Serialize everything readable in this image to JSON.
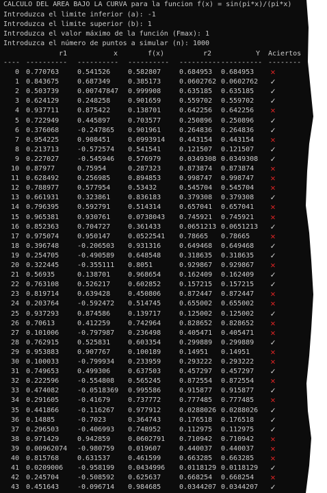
{
  "header_lines": [
    "CALCULO DEL AREA BAJO LA CURVA para la funcion f(x) = sin(pi*x)/(pi*x)",
    "Introduzca el limite inferior (a): -1",
    "Introduzca el limite superior (b): 1",
    "Introduzca el valor máximo de la función (Fmax): 1",
    "Introduzca el número de puntos a simular (n): 1000"
  ],
  "columns": {
    "r1": "r1",
    "x": "x",
    "fx": "f(x)",
    "r2": "r2",
    "y": "Y",
    "aciertos": "Aciertos"
  },
  "dashes": {
    "idx": "----",
    "r1": "----------",
    "x": "----------",
    "fx": "----------",
    "r2": "----------",
    "y": "----------",
    "aciertos": "--------"
  },
  "symbols": {
    "hit": "✓",
    "miss": "✕"
  },
  "colors": {
    "background": "#0c0c0c",
    "text": "#cccccc",
    "miss": "#e02424"
  },
  "rows": [
    [
      "0",
      "0.770763",
      "0.541526",
      "0.582807",
      "0.684953",
      "0.684953",
      "✕"
    ],
    [
      "1",
      "0.843675",
      "0.687349",
      "0.385173",
      "0.0602762",
      "0.0602762",
      "✓"
    ],
    [
      "2",
      "0.503739",
      "0.00747847",
      "0.999908",
      "0.635185",
      "0.635185",
      "✓"
    ],
    [
      "3",
      "0.624129",
      "0.248258",
      "0.901659",
      "0.559702",
      "0.559702",
      "✓"
    ],
    [
      "4",
      "0.937711",
      "0.875422",
      "0.138701",
      "0.642256",
      "0.642256",
      "✕"
    ],
    [
      "5",
      "0.722949",
      "0.445897",
      "0.703577",
      "0.250896",
      "0.250896",
      "✓"
    ],
    [
      "6",
      "0.376068",
      "-0.247865",
      "0.901961",
      "0.264836",
      "0.264836",
      "✓"
    ],
    [
      "7",
      "0.954225",
      "0.908451",
      "0.0993914",
      "0.443154",
      "0.443154",
      "✕"
    ],
    [
      "8",
      "0.213713",
      "-0.572574",
      "0.541541",
      "0.121507",
      "0.121507",
      "✓"
    ],
    [
      "9",
      "0.227027",
      "-0.545946",
      "0.576979",
      "0.0349308",
      "0.0349308",
      "✓"
    ],
    [
      "10",
      "0.87977",
      "0.75954",
      "0.287323",
      "0.873874",
      "0.873874",
      "✕"
    ],
    [
      "11",
      "0.628492",
      "0.256985",
      "0.894853",
      "0.998747",
      "0.998747",
      "✕"
    ],
    [
      "12",
      "0.788977",
      "0.577954",
      "0.53432",
      "0.545704",
      "0.545704",
      "✕"
    ],
    [
      "13",
      "0.661931",
      "0.323861",
      "0.836183",
      "0.379308",
      "0.379308",
      "✓"
    ],
    [
      "14",
      "0.796395",
      "0.592791",
      "0.514314",
      "0.657041",
      "0.657041",
      "✕"
    ],
    [
      "15",
      "0.965381",
      "0.930761",
      "0.0738043",
      "0.745921",
      "0.745921",
      "✕"
    ],
    [
      "16",
      "0.852363",
      "0.704727",
      "0.361433",
      "0.0651213",
      "0.0651213",
      "✓"
    ],
    [
      "17",
      "0.975074",
      "0.950147",
      "0.0522541",
      "0.78665",
      "0.78665",
      "✕"
    ],
    [
      "18",
      "0.396748",
      "-0.206503",
      "0.931316",
      "0.649468",
      "0.649468",
      "✓"
    ],
    [
      "19",
      "0.254705",
      "-0.490589",
      "0.648548",
      "0.318635",
      "0.318635",
      "✓"
    ],
    [
      "20",
      "0.322445",
      "-0.355111",
      "0.8051",
      "0.929867",
      "0.929867",
      "✕"
    ],
    [
      "21",
      "0.56935",
      "0.138701",
      "0.968654",
      "0.162409",
      "0.162409",
      "✓"
    ],
    [
      "22",
      "0.763108",
      "0.526217",
      "0.602852",
      "0.157215",
      "0.157215",
      "✓"
    ],
    [
      "23",
      "0.819714",
      "0.639428",
      "0.450806",
      "0.872447",
      "0.872447",
      "✕"
    ],
    [
      "24",
      "0.203764",
      "-0.592472",
      "0.514745",
      "0.655002",
      "0.655002",
      "✕"
    ],
    [
      "25",
      "0.937293",
      "0.874586",
      "0.139717",
      "0.125002",
      "0.125002",
      "✓"
    ],
    [
      "26",
      "0.70613",
      "0.412259",
      "0.742964",
      "0.828652",
      "0.828652",
      "✕"
    ],
    [
      "27",
      "0.101006",
      "-0.797987",
      "0.236498",
      "0.405471",
      "0.405471",
      "✕"
    ],
    [
      "28",
      "0.762915",
      "0.525831",
      "0.603354",
      "0.299889",
      "0.299889",
      "✓"
    ],
    [
      "29",
      "0.953883",
      "0.907767",
      "0.100189",
      "0.14951",
      "0.14951",
      "✕"
    ],
    [
      "30",
      "0.100033",
      "-0.799934",
      "0.233959",
      "0.293222",
      "0.293222",
      "✕"
    ],
    [
      "31",
      "0.749653",
      "0.499306",
      "0.637503",
      "0.457297",
      "0.457297",
      "✓"
    ],
    [
      "32",
      "0.222596",
      "-0.554808",
      "0.565245",
      "0.872554",
      "0.872554",
      "✕"
    ],
    [
      "33",
      "0.474082",
      "-0.0518369",
      "0.995586",
      "0.915877",
      "0.915877",
      "✓"
    ],
    [
      "34",
      "0.291605",
      "-0.41679",
      "0.737772",
      "0.777485",
      "0.777485",
      "✕"
    ],
    [
      "35",
      "0.441866",
      "-0.116267",
      "0.977912",
      "0.0288026",
      "0.0288026",
      "✓"
    ],
    [
      "36",
      "0.14885",
      "-0.7023",
      "0.364743",
      "0.176518",
      "0.176518",
      "✓"
    ],
    [
      "37",
      "0.296503",
      "-0.406993",
      "0.748952",
      "0.112975",
      "0.112975",
      "✓"
    ],
    [
      "38",
      "0.971429",
      "0.942859",
      "0.0602791",
      "0.710942",
      "0.710942",
      "✕"
    ],
    [
      "39",
      "0.00962074",
      "-0.980759",
      "0.019607",
      "0.440037",
      "0.440037",
      "✕"
    ],
    [
      "40",
      "0.815768",
      "0.631537",
      "0.461599",
      "0.663285",
      "0.663285",
      "✕"
    ],
    [
      "41",
      "0.0209006",
      "-0.958199",
      "0.0434996",
      "0.0118129",
      "0.0118129",
      "✓"
    ],
    [
      "42",
      "0.245704",
      "-0.508592",
      "0.625637",
      "0.668254",
      "0.668254",
      "✕"
    ],
    [
      "43",
      "0.451643",
      "-0.096714",
      "0.984685",
      "0.0344207",
      "0.0344207",
      "✓"
    ]
  ],
  "edge_fragments": [
    "1",
    "1.",
    "1.",
    "1.",
    "0"
  ]
}
